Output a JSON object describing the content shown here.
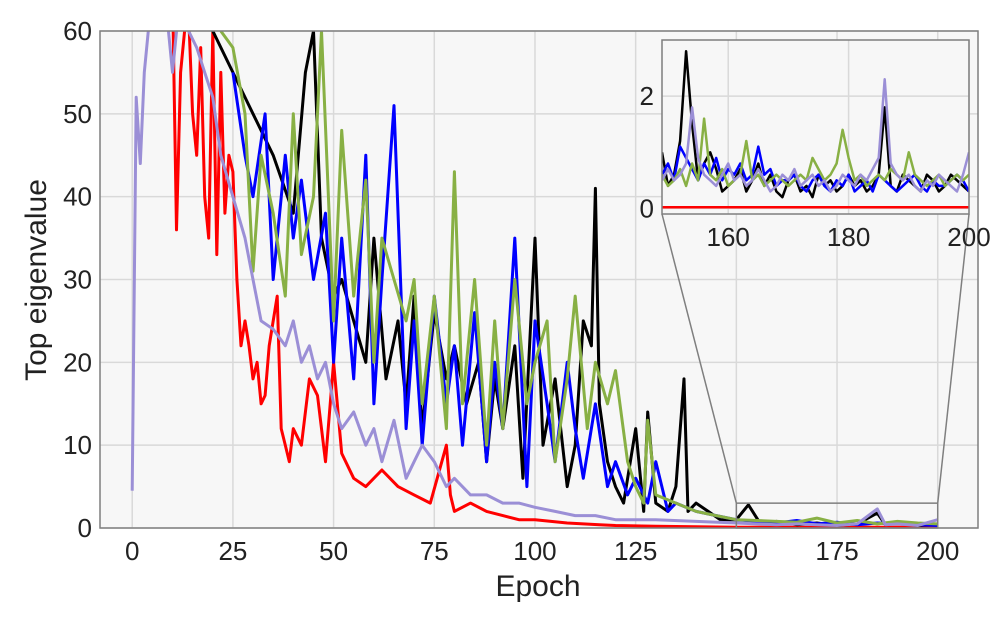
{
  "chart_data": [
    {
      "type": "line",
      "title": "",
      "xlabel": "Epoch",
      "ylabel": "Top eigenvalue",
      "xlim": [
        -8,
        210
      ],
      "ylim": [
        0,
        60
      ],
      "xticks": [
        0,
        25,
        50,
        75,
        100,
        125,
        150,
        175,
        200
      ],
      "yticks": [
        0,
        10,
        20,
        30,
        40,
        50,
        60
      ],
      "grid": true,
      "background": "#f7f7f7",
      "series": [
        {
          "color": "#ff0000",
          "x": [
            10,
            11,
            12,
            13,
            14,
            15,
            16,
            17,
            18,
            19,
            20,
            21,
            22,
            23,
            24,
            25,
            26,
            27,
            28,
            29,
            30,
            31,
            32,
            33,
            34,
            35,
            36,
            37,
            38,
            39,
            40,
            42,
            44,
            46,
            48,
            50,
            52,
            55,
            58,
            62,
            66,
            70,
            74,
            78,
            79,
            80,
            84,
            88,
            92,
            96,
            100,
            104,
            108,
            112,
            116,
            120,
            130,
            140,
            150,
            160,
            170,
            180,
            190,
            200
          ],
          "y": [
            65,
            36,
            55,
            60,
            62,
            50,
            45,
            58,
            40,
            35,
            60,
            33,
            55,
            38,
            45,
            43,
            30,
            22,
            25,
            22,
            18,
            20,
            15,
            16,
            22,
            25,
            28,
            12,
            10,
            8,
            12,
            10,
            18,
            16,
            8,
            20,
            9,
            6,
            5,
            7,
            5,
            4,
            3,
            10,
            4,
            2,
            3,
            2,
            1.5,
            1,
            1,
            0.8,
            0.6,
            0.5,
            0.4,
            0.3,
            0.2,
            0.15,
            0.1,
            0.1,
            0.1,
            0.1,
            0.1,
            0.1
          ]
        },
        {
          "color": "#000000",
          "x": [
            20,
            25,
            30,
            35,
            40,
            43,
            45,
            47,
            50,
            52,
            55,
            58,
            60,
            63,
            66,
            68,
            70,
            72,
            75,
            78,
            80,
            83,
            86,
            88,
            90,
            92,
            95,
            97,
            100,
            102,
            105,
            108,
            110,
            112,
            114,
            115,
            116,
            118,
            120,
            122,
            125,
            127,
            128,
            130,
            133,
            135,
            137,
            138,
            140,
            143,
            146,
            150,
            153,
            156,
            160,
            165,
            170,
            175,
            180,
            185,
            187,
            190,
            195,
            200
          ],
          "y": [
            60,
            55,
            50,
            45,
            38,
            55,
            60,
            35,
            28,
            30,
            25,
            20,
            35,
            18,
            25,
            15,
            28,
            12,
            26,
            18,
            22,
            15,
            20,
            8,
            18,
            12,
            22,
            6,
            35,
            10,
            18,
            5,
            10,
            25,
            22,
            41,
            15,
            8,
            5,
            3,
            12,
            2,
            14,
            3,
            2,
            5,
            18,
            2,
            3,
            2,
            1,
            1,
            2.8,
            0.5,
            0.8,
            0.4,
            0.6,
            0.3,
            0.5,
            1.8,
            0.4,
            0.6,
            0.3,
            0.4
          ]
        },
        {
          "color": "#0000ff",
          "x": [
            25,
            28,
            30,
            33,
            35,
            38,
            40,
            42,
            45,
            48,
            50,
            52,
            55,
            58,
            60,
            62,
            65,
            68,
            70,
            72,
            75,
            78,
            80,
            82,
            85,
            88,
            90,
            92,
            95,
            98,
            100,
            103,
            105,
            108,
            110,
            112,
            115,
            118,
            120,
            123,
            125,
            128,
            130,
            133,
            135,
            140,
            145,
            150,
            155,
            160,
            165,
            170,
            175,
            180,
            185,
            190,
            195,
            200
          ],
          "y": [
            55,
            45,
            40,
            50,
            30,
            45,
            35,
            42,
            30,
            38,
            20,
            35,
            18,
            45,
            15,
            30,
            51,
            12,
            25,
            10,
            28,
            15,
            22,
            10,
            26,
            8,
            20,
            12,
            35,
            5,
            25,
            15,
            8,
            20,
            12,
            6,
            15,
            5,
            8,
            4,
            6,
            3,
            8,
            2,
            3,
            2,
            1.5,
            1,
            0.8,
            0.6,
            0.9,
            0.5,
            0.7,
            0.4,
            0.6,
            0.5,
            0.4,
            0.3
          ]
        },
        {
          "color": "#88b044",
          "x": [
            22,
            25,
            28,
            30,
            32,
            35,
            38,
            40,
            42,
            45,
            47,
            50,
            52,
            55,
            58,
            60,
            62,
            65,
            68,
            70,
            72,
            75,
            78,
            80,
            82,
            85,
            88,
            90,
            92,
            95,
            98,
            100,
            103,
            105,
            108,
            110,
            113,
            115,
            118,
            120,
            123,
            125,
            127,
            128,
            130,
            135,
            140,
            145,
            150,
            155,
            160,
            165,
            170,
            175,
            180,
            185,
            190,
            195,
            200
          ],
          "y": [
            60,
            58,
            50,
            31,
            45,
            38,
            28,
            50,
            33,
            40,
            60,
            25,
            48,
            28,
            42,
            20,
            35,
            30,
            25,
            30,
            15,
            28,
            12,
            43,
            15,
            30,
            10,
            25,
            12,
            30,
            15,
            20,
            25,
            8,
            18,
            28,
            12,
            20,
            15,
            19,
            8,
            5,
            3,
            13,
            4,
            3,
            2,
            1.5,
            1,
            0.9,
            0.8,
            0.7,
            1.2,
            0.6,
            0.9,
            0.5,
            0.8,
            0.6,
            0.5
          ]
        },
        {
          "color": "#9b8fd6",
          "x": [
            0,
            1,
            2,
            3,
            4,
            5,
            6,
            8,
            10,
            12,
            14,
            16,
            18,
            20,
            22,
            25,
            28,
            30,
            32,
            35,
            38,
            40,
            42,
            44,
            46,
            48,
            50,
            52,
            55,
            58,
            60,
            62,
            65,
            68,
            70,
            72,
            75,
            78,
            80,
            84,
            88,
            92,
            96,
            100,
            105,
            110,
            115,
            120,
            125,
            130,
            140,
            150,
            155,
            160,
            165,
            170,
            175,
            180,
            185,
            187,
            190,
            195,
            200
          ],
          "y": [
            4.5,
            52,
            44,
            55,
            60,
            65,
            68,
            65,
            55,
            65,
            60,
            58,
            55,
            52,
            45,
            40,
            35,
            30,
            25,
            24,
            22,
            25,
            20,
            22,
            18,
            20,
            15,
            12,
            14,
            10,
            12,
            8,
            13,
            6,
            8,
            10,
            8,
            5,
            6,
            4,
            4,
            3,
            3,
            2.5,
            2,
            1.5,
            1.5,
            1,
            1,
            1,
            0.8,
            0.6,
            0.5,
            0.4,
            0.5,
            0.4,
            0.3,
            0.5,
            2.3,
            0.4,
            0.5,
            0.3,
            1
          ]
        }
      ]
    },
    {
      "type": "line",
      "role": "inset-zoom",
      "title": "",
      "xlim": [
        149,
        200
      ],
      "ylim": [
        -0.1,
        3.0
      ],
      "xticks": [
        160,
        180,
        200
      ],
      "yticks": [
        0,
        2
      ],
      "grid": true,
      "zoom_region": {
        "x": [
          150,
          200
        ],
        "y": [
          0,
          3
        ]
      },
      "series": [
        {
          "color": "#ff0000",
          "x": [
            149,
            160,
            170,
            180,
            190,
            200
          ],
          "y": [
            0.02,
            0.02,
            0.02,
            0.02,
            0.02,
            0.02
          ]
        },
        {
          "color": "#000000",
          "x": [
            149,
            150,
            151,
            152,
            153,
            154,
            155,
            156,
            157,
            158,
            159,
            160,
            161,
            162,
            163,
            164,
            165,
            166,
            167,
            168,
            169,
            170,
            171,
            172,
            173,
            174,
            175,
            176,
            177,
            178,
            179,
            180,
            181,
            182,
            183,
            184,
            185,
            186,
            187,
            188,
            189,
            190,
            191,
            192,
            193,
            194,
            195,
            196,
            197,
            198,
            199,
            200
          ],
          "y": [
            1.0,
            0.4,
            0.6,
            1.2,
            2.8,
            1.5,
            0.5,
            0.8,
            1.0,
            0.7,
            0.3,
            0.4,
            0.5,
            0.7,
            0.3,
            0.5,
            0.8,
            0.4,
            0.6,
            0.3,
            0.2,
            0.5,
            0.6,
            0.3,
            0.4,
            0.2,
            0.6,
            0.4,
            0.5,
            0.3,
            0.4,
            0.6,
            0.4,
            0.5,
            0.3,
            0.4,
            0.6,
            1.8,
            0.4,
            0.3,
            0.6,
            0.5,
            0.4,
            0.3,
            0.6,
            0.5,
            0.3,
            0.4,
            0.6,
            0.5,
            0.4,
            0.3
          ]
        },
        {
          "color": "#0000ff",
          "x": [
            149,
            150,
            151,
            152,
            153,
            154,
            155,
            156,
            157,
            158,
            159,
            160,
            161,
            162,
            163,
            164,
            165,
            166,
            167,
            168,
            169,
            170,
            171,
            172,
            173,
            174,
            175,
            176,
            177,
            178,
            179,
            180,
            181,
            182,
            183,
            184,
            185,
            186,
            187,
            188,
            189,
            190,
            191,
            192,
            193,
            194,
            195,
            196,
            197,
            198,
            199,
            200
          ],
          "y": [
            0.6,
            0.8,
            0.5,
            1.1,
            0.9,
            0.7,
            0.5,
            0.8,
            0.6,
            0.9,
            0.5,
            0.7,
            0.6,
            0.8,
            0.5,
            0.6,
            1.1,
            0.6,
            0.7,
            0.4,
            0.5,
            0.5,
            0.6,
            0.4,
            0.3,
            0.5,
            0.6,
            0.4,
            0.3,
            0.5,
            0.4,
            0.6,
            0.3,
            0.4,
            0.5,
            0.3,
            0.6,
            0.5,
            0.4,
            0.3,
            0.4,
            0.5,
            0.6,
            0.4,
            0.3,
            0.5,
            0.4,
            0.4,
            0.5,
            0.6,
            0.5,
            0.3
          ]
        },
        {
          "color": "#88b044",
          "x": [
            149,
            150,
            151,
            152,
            153,
            154,
            155,
            156,
            157,
            158,
            159,
            160,
            161,
            162,
            163,
            164,
            165,
            166,
            167,
            168,
            169,
            170,
            171,
            172,
            173,
            174,
            175,
            176,
            177,
            178,
            179,
            180,
            181,
            182,
            183,
            184,
            185,
            186,
            187,
            188,
            189,
            190,
            191,
            192,
            193,
            194,
            195,
            196,
            197,
            198,
            199,
            200
          ],
          "y": [
            0.6,
            0.4,
            0.5,
            0.7,
            0.4,
            0.8,
            0.5,
            1.6,
            0.6,
            0.5,
            0.7,
            0.4,
            0.5,
            0.6,
            1.2,
            0.5,
            0.6,
            0.4,
            0.5,
            0.6,
            0.5,
            0.4,
            0.5,
            0.6,
            0.5,
            0.9,
            0.7,
            0.5,
            0.6,
            0.8,
            1.4,
            0.9,
            0.5,
            0.6,
            0.4,
            0.5,
            0.6,
            0.5,
            0.7,
            0.6,
            0.5,
            1.0,
            0.6,
            0.5,
            0.4,
            0.5,
            0.6,
            0.4,
            0.5,
            0.6,
            0.5,
            0.6
          ]
        },
        {
          "color": "#9b8fd6",
          "x": [
            149,
            150,
            151,
            152,
            153,
            154,
            155,
            156,
            157,
            158,
            159,
            160,
            161,
            162,
            163,
            164,
            165,
            166,
            167,
            168,
            169,
            170,
            171,
            172,
            173,
            174,
            175,
            176,
            177,
            178,
            179,
            180,
            181,
            182,
            183,
            184,
            185,
            186,
            187,
            188,
            189,
            190,
            191,
            192,
            193,
            194,
            195,
            196,
            197,
            198,
            199,
            200
          ],
          "y": [
            0.5,
            0.7,
            0.5,
            0.6,
            0.8,
            1.8,
            0.9,
            0.6,
            0.5,
            0.4,
            0.6,
            0.8,
            0.5,
            0.6,
            0.4,
            0.5,
            0.7,
            0.5,
            0.3,
            0.4,
            0.6,
            0.5,
            0.7,
            0.4,
            0.5,
            0.6,
            0.4,
            0.5,
            0.3,
            0.4,
            0.6,
            0.5,
            0.4,
            0.6,
            0.5,
            0.7,
            0.9,
            2.3,
            0.8,
            0.6,
            0.5,
            0.6,
            0.4,
            0.3,
            0.5,
            0.4,
            0.6,
            0.5,
            0.4,
            0.3,
            0.6,
            1.0
          ]
        }
      ]
    }
  ]
}
